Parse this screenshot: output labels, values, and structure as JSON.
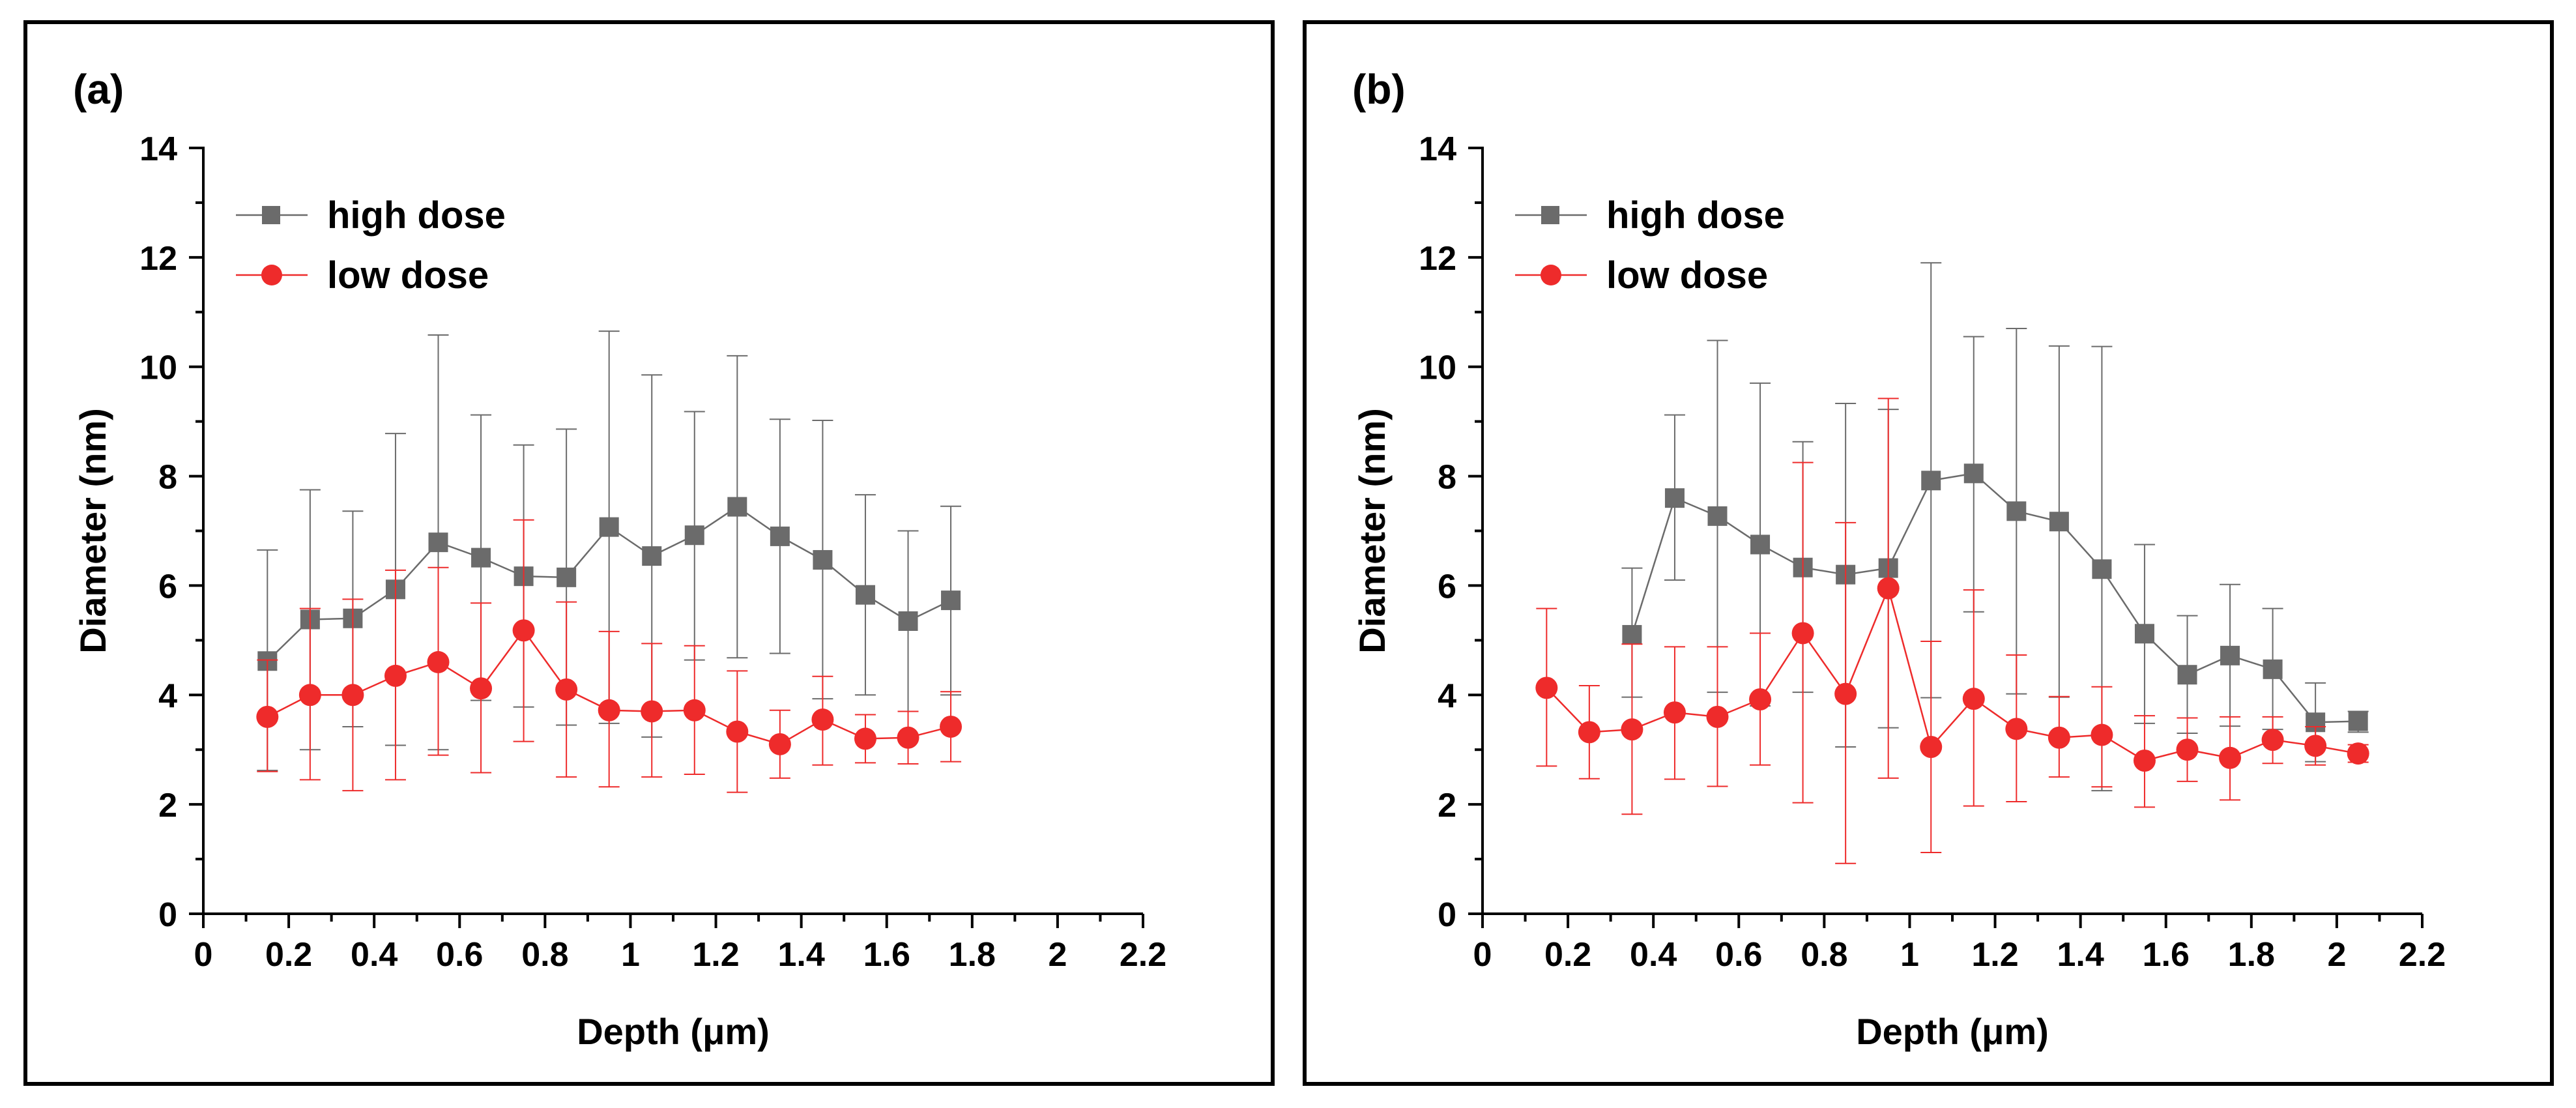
{
  "chart_data": [
    {
      "type": "line",
      "panel_label": "(a)",
      "xlabel": "Depth (μm)",
      "ylabel": "Diameter (nm)",
      "xlim": [
        0,
        2.2
      ],
      "ylim": [
        0,
        14
      ],
      "xticks": [
        0,
        0.2,
        0.4,
        0.6,
        0.8,
        1,
        1.2,
        1.4,
        1.6,
        1.8,
        2,
        2.2
      ],
      "xtick_labels": [
        "0",
        "0.2",
        "0.4",
        "0.6",
        "0.8",
        "1",
        "1.2",
        "1.4",
        "1.6",
        "1.8",
        "2",
        "2.2"
      ],
      "yticks": [
        0,
        2,
        4,
        6,
        8,
        10,
        12,
        14
      ],
      "ytick_labels": [
        "0",
        "2",
        "4",
        "6",
        "8",
        "10",
        "12",
        "14"
      ],
      "legend_position": "top-left",
      "series": [
        {
          "name": "high dose",
          "color": "#6b6b6b",
          "marker": "square",
          "x": [
            0.15,
            0.25,
            0.35,
            0.45,
            0.55,
            0.65,
            0.75,
            0.85,
            0.95,
            1.05,
            1.15,
            1.25,
            1.35,
            1.45,
            1.55,
            1.65,
            1.75
          ],
          "y": [
            4.62,
            5.38,
            5.4,
            5.93,
            6.79,
            6.51,
            6.17,
            6.15,
            7.07,
            6.54,
            6.92,
            7.44,
            6.9,
            6.47,
            5.83,
            5.35,
            5.73
          ],
          "err_low": [
            2.62,
            3.0,
            3.42,
            3.08,
            3.0,
            3.9,
            3.78,
            3.45,
            3.48,
            3.23,
            4.64,
            4.68,
            4.76,
            3.93,
            4.0,
            3.7,
            4.0
          ],
          "err_high": [
            6.65,
            7.75,
            7.36,
            8.78,
            10.58,
            9.12,
            8.57,
            8.86,
            10.65,
            9.85,
            9.18,
            10.2,
            9.04,
            9.02,
            7.66,
            7.0,
            7.45
          ]
        },
        {
          "name": "low dose",
          "color": "#ee2b2b",
          "marker": "circle",
          "x": [
            0.15,
            0.25,
            0.35,
            0.45,
            0.55,
            0.65,
            0.75,
            0.85,
            0.95,
            1.05,
            1.15,
            1.25,
            1.35,
            1.45,
            1.55,
            1.65,
            1.75
          ],
          "y": [
            3.6,
            4.0,
            4.0,
            4.35,
            4.6,
            4.12,
            5.18,
            4.1,
            3.72,
            3.7,
            3.72,
            3.33,
            3.1,
            3.55,
            3.2,
            3.22,
            3.42
          ],
          "err_low": [
            2.6,
            2.45,
            2.25,
            2.45,
            2.9,
            2.58,
            3.15,
            2.5,
            2.32,
            2.5,
            2.55,
            2.22,
            2.48,
            2.72,
            2.76,
            2.74,
            2.78
          ],
          "err_high": [
            4.64,
            5.58,
            5.75,
            6.28,
            6.33,
            5.68,
            7.2,
            5.7,
            5.16,
            4.94,
            4.9,
            4.44,
            3.72,
            4.34,
            3.64,
            3.7,
            4.06
          ]
        }
      ]
    },
    {
      "type": "line",
      "panel_label": "(b)",
      "xlabel": "Depth (μm)",
      "ylabel": "Diameter (nm)",
      "xlim": [
        0,
        2.2
      ],
      "ylim": [
        0,
        14
      ],
      "xticks": [
        0,
        0.2,
        0.4,
        0.6,
        0.8,
        1,
        1.2,
        1.4,
        1.6,
        1.8,
        2,
        2.2
      ],
      "xtick_labels": [
        "0",
        "0.2",
        "0.4",
        "0.6",
        "0.8",
        "1",
        "1.2",
        "1.4",
        "1.6",
        "1.8",
        "2",
        "2.2"
      ],
      "yticks": [
        0,
        2,
        4,
        6,
        8,
        10,
        12,
        14
      ],
      "ytick_labels": [
        "0",
        "2",
        "4",
        "6",
        "8",
        "10",
        "12",
        "14"
      ],
      "legend_position": "top-left",
      "series": [
        {
          "name": "high dose",
          "color": "#6b6b6b",
          "marker": "square",
          "x": [
            0.35,
            0.45,
            0.55,
            0.65,
            0.75,
            0.85,
            0.95,
            1.05,
            1.15,
            1.25,
            1.35,
            1.45,
            1.55,
            1.65,
            1.75,
            1.85,
            1.95,
            2.05
          ],
          "y": [
            5.1,
            7.6,
            7.27,
            6.75,
            6.33,
            6.2,
            6.32,
            7.92,
            8.05,
            7.36,
            7.17,
            6.3,
            5.12,
            4.37,
            4.72,
            4.47,
            3.5,
            3.52
          ],
          "err_low": [
            3.96,
            6.1,
            4.05,
            3.8,
            4.05,
            3.05,
            3.4,
            3.95,
            5.52,
            4.02,
            3.96,
            2.25,
            3.48,
            3.3,
            3.43,
            3.37,
            2.78,
            3.32
          ],
          "err_high": [
            6.32,
            9.12,
            10.48,
            9.7,
            8.63,
            9.33,
            9.22,
            11.9,
            10.55,
            10.7,
            10.38,
            10.37,
            6.75,
            5.45,
            6.02,
            5.58,
            4.22,
            3.7
          ]
        },
        {
          "name": "low dose",
          "color": "#ee2b2b",
          "marker": "circle",
          "x": [
            0.15,
            0.25,
            0.35,
            0.45,
            0.55,
            0.65,
            0.75,
            0.85,
            0.95,
            1.05,
            1.15,
            1.25,
            1.35,
            1.45,
            1.55,
            1.65,
            1.75,
            1.85,
            1.95,
            2.05
          ],
          "y": [
            4.13,
            3.32,
            3.37,
            3.68,
            3.6,
            3.92,
            5.13,
            4.02,
            5.95,
            3.05,
            3.93,
            3.38,
            3.22,
            3.27,
            2.8,
            3.0,
            2.85,
            3.18,
            3.07,
            2.93
          ],
          "err_low": [
            2.7,
            2.47,
            1.82,
            2.46,
            2.33,
            2.72,
            2.03,
            0.92,
            2.48,
            1.12,
            1.97,
            2.05,
            2.5,
            2.32,
            1.95,
            2.42,
            2.08,
            2.75,
            2.72,
            2.77
          ],
          "err_high": [
            5.58,
            4.17,
            4.93,
            4.88,
            4.88,
            5.13,
            8.25,
            7.15,
            9.42,
            4.98,
            5.92,
            4.73,
            3.97,
            4.15,
            3.62,
            3.58,
            3.6,
            3.6,
            3.42,
            3.09
          ]
        }
      ]
    }
  ]
}
